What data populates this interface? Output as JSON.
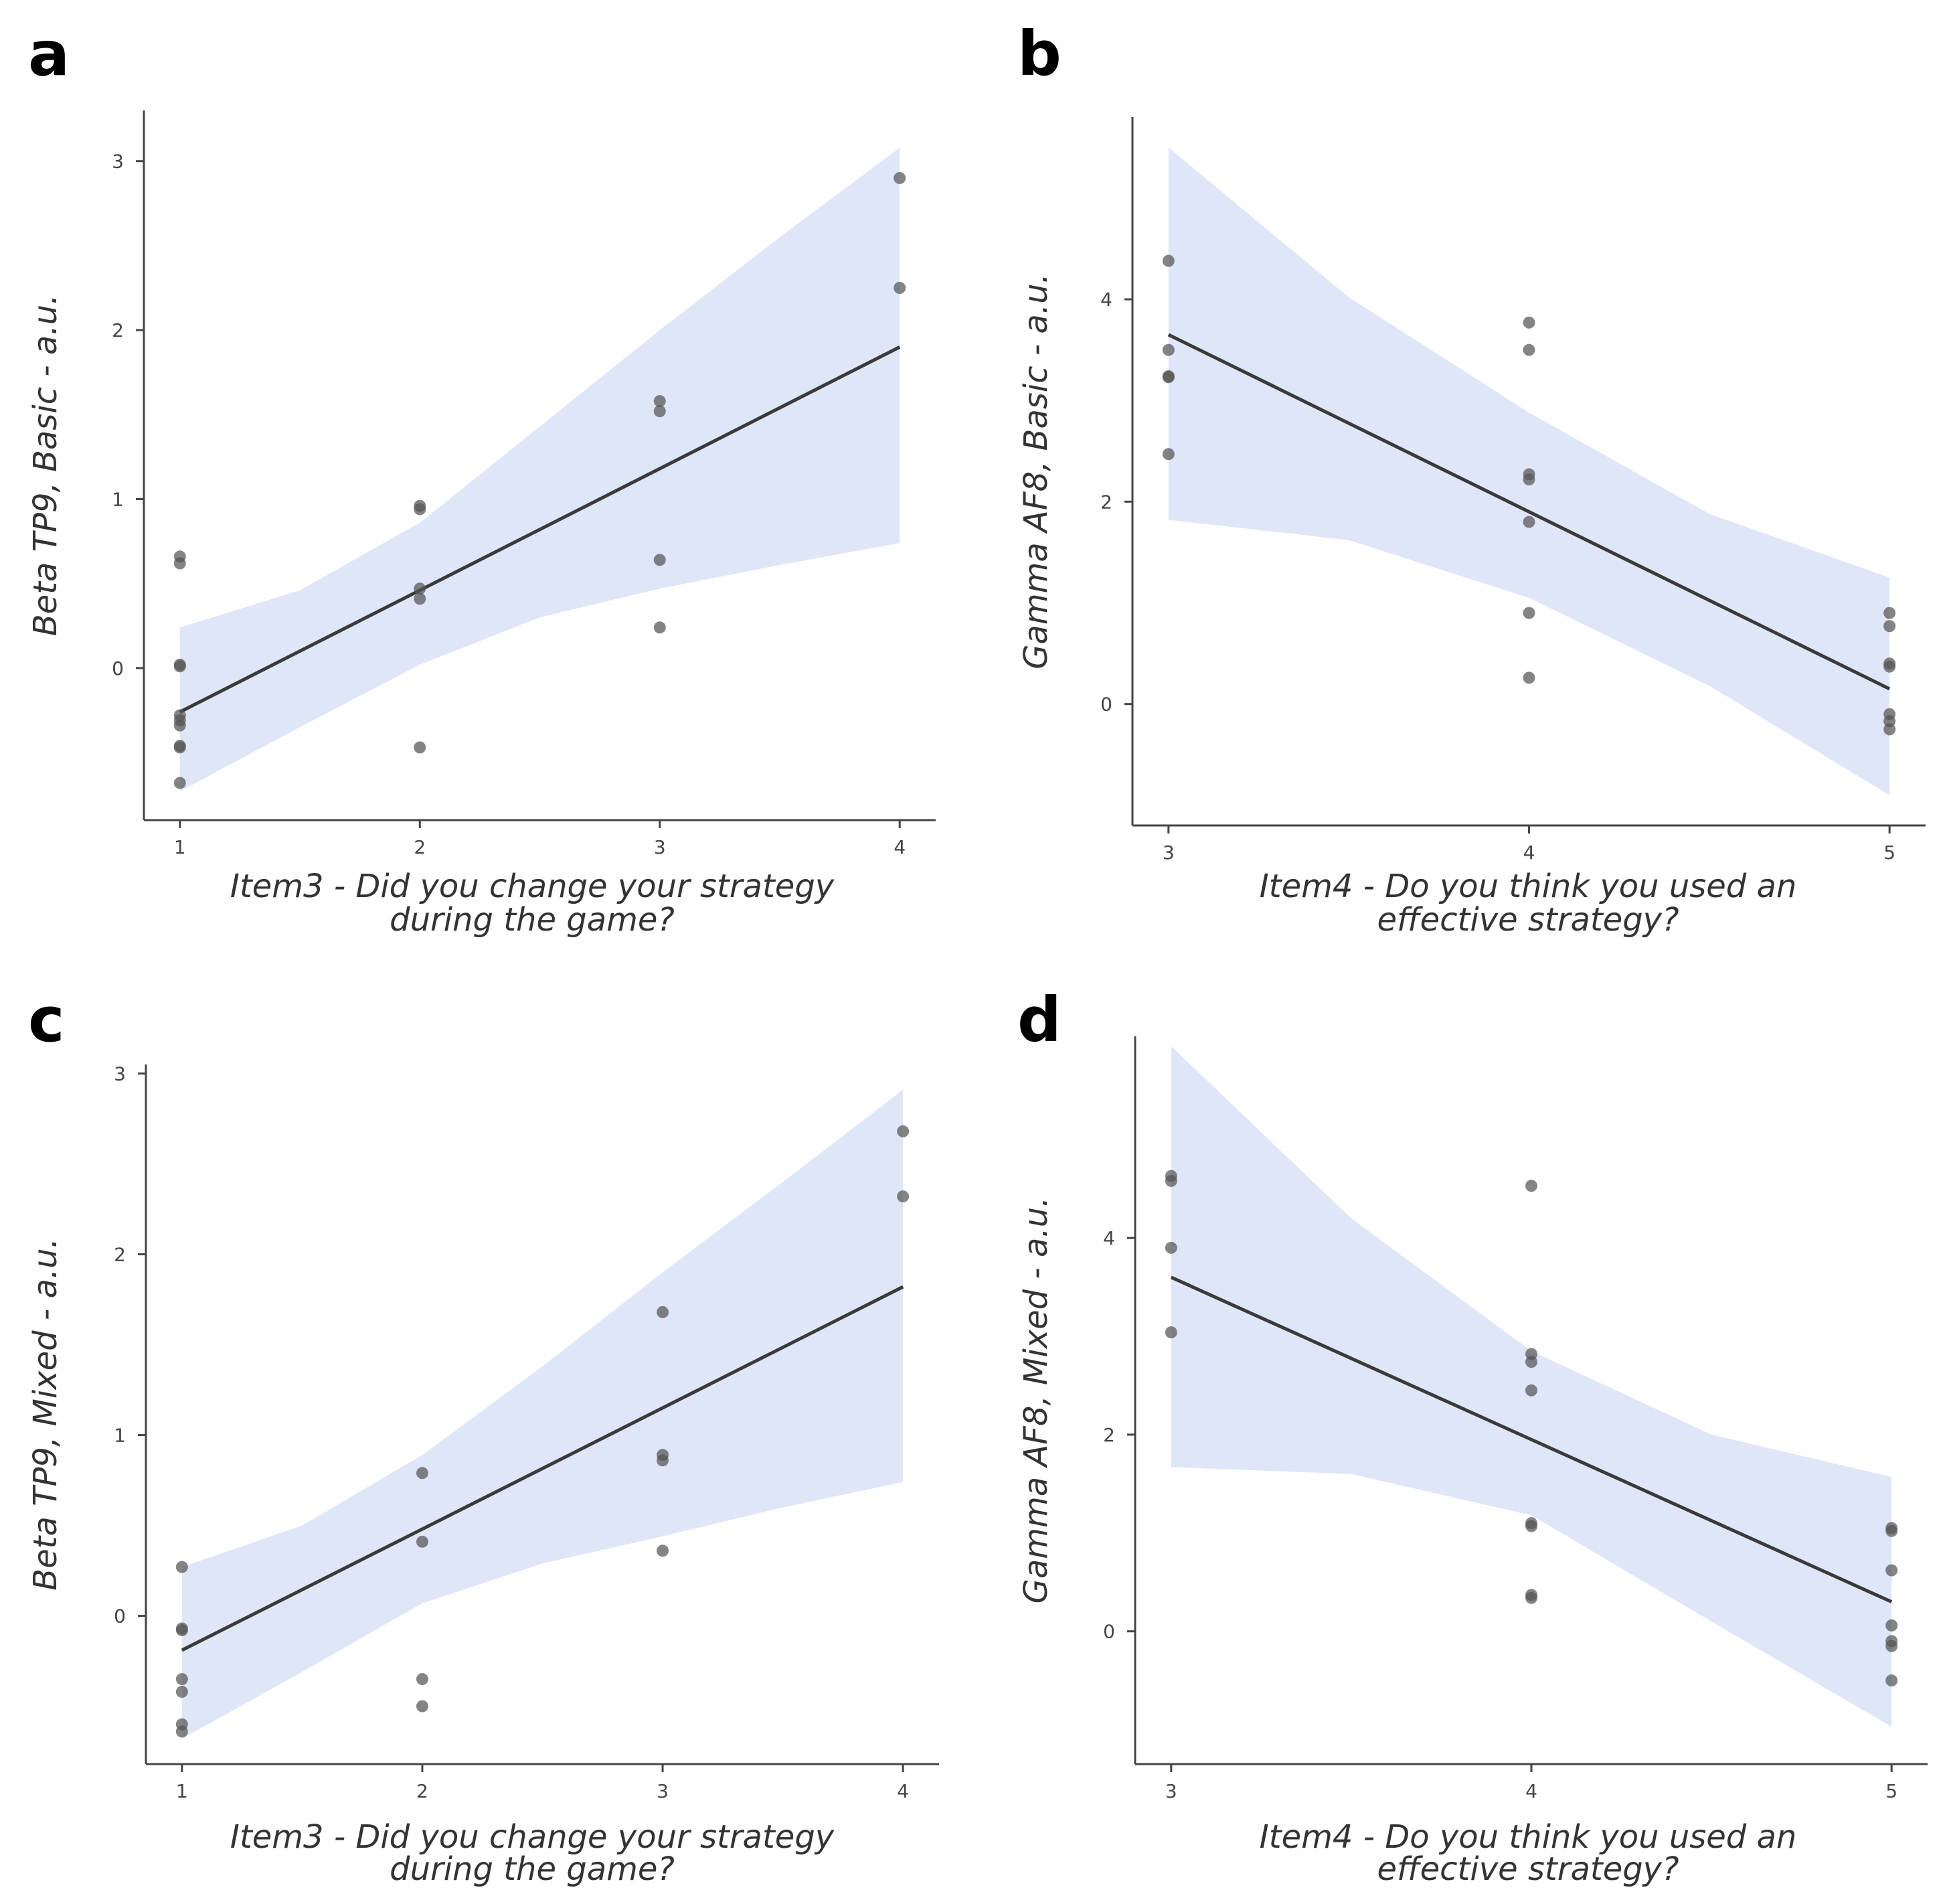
{
  "chart_data": [
    {
      "id": "a",
      "type": "scatter",
      "panel_label": "a",
      "xlabel_lines": [
        "Item3 - Did you change your strategy",
        "during the game?"
      ],
      "ylabel": "Beta TP9, Basic - a.u.",
      "xlim": [
        0.85,
        4.15
      ],
      "ylim": [
        -0.9,
        3.3
      ],
      "xticks": [
        1,
        2,
        3,
        4
      ],
      "yticks": [
        0,
        1,
        2,
        3
      ],
      "fit": {
        "intercept": -0.98,
        "slope": 0.72,
        "x_range": [
          1,
          4
        ]
      },
      "ci_upper": [
        [
          1,
          0.24
        ],
        [
          1.5,
          0.46
        ],
        [
          2,
          0.86
        ],
        [
          2.5,
          1.43
        ],
        [
          3,
          2.0
        ],
        [
          3.5,
          2.55
        ],
        [
          4,
          3.08
        ]
      ],
      "ci_lower": [
        [
          1,
          -0.73
        ],
        [
          1.5,
          -0.35
        ],
        [
          2,
          0.02
        ],
        [
          2.5,
          0.3
        ],
        [
          3,
          0.47
        ],
        [
          3.5,
          0.61
        ],
        [
          4,
          0.74
        ]
      ],
      "points": [
        {
          "x": 1,
          "y": 0.66
        },
        {
          "x": 1,
          "y": 0.62
        },
        {
          "x": 1,
          "y": 0.02
        },
        {
          "x": 1,
          "y": 0.01
        },
        {
          "x": 1,
          "y": -0.28
        },
        {
          "x": 1,
          "y": -0.31
        },
        {
          "x": 1,
          "y": -0.34
        },
        {
          "x": 1,
          "y": -0.46
        },
        {
          "x": 1,
          "y": -0.47
        },
        {
          "x": 1,
          "y": -0.68
        },
        {
          "x": 2,
          "y": 0.96
        },
        {
          "x": 2,
          "y": 0.94
        },
        {
          "x": 2,
          "y": 0.47
        },
        {
          "x": 2,
          "y": 0.41
        },
        {
          "x": 2,
          "y": -0.47
        },
        {
          "x": 3,
          "y": 1.58
        },
        {
          "x": 3,
          "y": 1.52
        },
        {
          "x": 3,
          "y": 0.64
        },
        {
          "x": 3,
          "y": 0.24
        },
        {
          "x": 4,
          "y": 2.9
        },
        {
          "x": 4,
          "y": 2.25
        }
      ]
    },
    {
      "id": "b",
      "type": "scatter",
      "panel_label": "b",
      "xlabel_lines": [
        "Item4 - Do you think you used an",
        "effective strategy?"
      ],
      "ylabel": "Gamma AF8, Basic - a.u.",
      "xlim": [
        2.9,
        5.1
      ],
      "ylim": [
        -1.2,
        5.8
      ],
      "xticks": [
        3,
        4,
        5
      ],
      "yticks": [
        0,
        2,
        4
      ],
      "fit": {
        "intercept": 8.9,
        "slope": -1.75,
        "x_range": [
          3,
          5
        ]
      },
      "ci_upper": [
        [
          3,
          5.5
        ],
        [
          3.5,
          4.02
        ],
        [
          4,
          2.88
        ],
        [
          4.5,
          1.88
        ],
        [
          5,
          1.25
        ]
      ],
      "ci_lower": [
        [
          3,
          1.82
        ],
        [
          3.5,
          1.62
        ],
        [
          4,
          1.05
        ],
        [
          4.5,
          0.18
        ],
        [
          5,
          -0.9
        ]
      ],
      "points": [
        {
          "x": 3,
          "y": 4.38
        },
        {
          "x": 3,
          "y": 3.5
        },
        {
          "x": 3,
          "y": 3.24
        },
        {
          "x": 3,
          "y": 3.23
        },
        {
          "x": 3,
          "y": 2.47
        },
        {
          "x": 4,
          "y": 3.77
        },
        {
          "x": 4,
          "y": 3.5
        },
        {
          "x": 4,
          "y": 2.27
        },
        {
          "x": 4,
          "y": 2.22
        },
        {
          "x": 4,
          "y": 1.8
        },
        {
          "x": 4,
          "y": 0.9
        },
        {
          "x": 4,
          "y": 0.26
        },
        {
          "x": 5,
          "y": 0.9
        },
        {
          "x": 5,
          "y": 0.77
        },
        {
          "x": 5,
          "y": 0.4
        },
        {
          "x": 5,
          "y": 0.37
        },
        {
          "x": 5,
          "y": -0.1
        },
        {
          "x": 5,
          "y": -0.17
        },
        {
          "x": 5,
          "y": -0.25
        }
      ]
    },
    {
      "id": "c",
      "type": "scatter",
      "panel_label": "c",
      "xlabel_lines": [
        "Item3 - Did you change your strategy",
        "during the game?"
      ],
      "ylabel": "Beta TP9, Mixed - a.u.",
      "xlim": [
        0.85,
        4.15
      ],
      "ylim": [
        -0.82,
        3.05
      ],
      "xticks": [
        1,
        2,
        3,
        4
      ],
      "yticks": [
        0,
        1,
        2,
        3
      ],
      "fit": {
        "intercept": -0.86,
        "slope": 0.67,
        "x_range": [
          1,
          4
        ]
      },
      "ci_upper": [
        [
          1,
          0.27
        ],
        [
          1.5,
          0.5
        ],
        [
          2,
          0.89
        ],
        [
          2.5,
          1.38
        ],
        [
          3,
          1.9
        ],
        [
          3.5,
          2.4
        ],
        [
          4,
          2.91
        ]
      ],
      "ci_lower": [
        [
          1,
          -0.68
        ],
        [
          1.5,
          -0.31
        ],
        [
          2,
          0.07
        ],
        [
          2.5,
          0.29
        ],
        [
          3,
          0.44
        ],
        [
          3.5,
          0.6
        ],
        [
          4,
          0.74
        ]
      ],
      "points": [
        {
          "x": 1,
          "y": 0.27
        },
        {
          "x": 1,
          "y": -0.07
        },
        {
          "x": 1,
          "y": -0.08
        },
        {
          "x": 1,
          "y": -0.35
        },
        {
          "x": 1,
          "y": -0.42
        },
        {
          "x": 1,
          "y": -0.6
        },
        {
          "x": 1,
          "y": -0.64
        },
        {
          "x": 2,
          "y": 0.79
        },
        {
          "x": 2,
          "y": 0.41
        },
        {
          "x": 2,
          "y": -0.35
        },
        {
          "x": 2,
          "y": -0.5
        },
        {
          "x": 3,
          "y": 1.68
        },
        {
          "x": 3,
          "y": 0.89
        },
        {
          "x": 3,
          "y": 0.86
        },
        {
          "x": 3,
          "y": 0.36
        },
        {
          "x": 4,
          "y": 2.68
        },
        {
          "x": 4,
          "y": 2.32
        }
      ]
    },
    {
      "id": "d",
      "type": "scatter",
      "panel_label": "d",
      "xlabel_lines": [
        "Item4 - Do you think you used an",
        "effective strategy?"
      ],
      "ylabel": "Gamma AF8, Mixed - a.u.",
      "xlim": [
        2.9,
        5.1
      ],
      "ylim": [
        -1.35,
        6.05
      ],
      "xticks": [
        3,
        4,
        5
      ],
      "yticks": [
        0,
        2,
        4
      ],
      "fit": {
        "intercept": 8.55,
        "slope": -1.65,
        "x_range": [
          3,
          5
        ]
      },
      "ci_upper": [
        [
          3,
          5.95
        ],
        [
          3.5,
          4.2
        ],
        [
          4,
          2.85
        ],
        [
          4.5,
          2.0
        ],
        [
          5,
          1.57
        ]
      ],
      "ci_lower": [
        [
          3,
          1.67
        ],
        [
          3.5,
          1.6
        ],
        [
          4,
          1.18
        ],
        [
          4.5,
          0.1
        ],
        [
          5,
          -0.97
        ]
      ],
      "points": [
        {
          "x": 3,
          "y": 4.63
        },
        {
          "x": 3,
          "y": 4.58
        },
        {
          "x": 3,
          "y": 3.9
        },
        {
          "x": 3,
          "y": 3.04
        },
        {
          "x": 4,
          "y": 4.53
        },
        {
          "x": 4,
          "y": 2.82
        },
        {
          "x": 4,
          "y": 2.74
        },
        {
          "x": 4,
          "y": 2.45
        },
        {
          "x": 4,
          "y": 1.1
        },
        {
          "x": 4,
          "y": 1.07
        },
        {
          "x": 4,
          "y": 0.37
        },
        {
          "x": 4,
          "y": 0.34
        },
        {
          "x": 5,
          "y": 1.05
        },
        {
          "x": 5,
          "y": 1.02
        },
        {
          "x": 5,
          "y": 0.62
        },
        {
          "x": 5,
          "y": 0.06
        },
        {
          "x": 5,
          "y": -0.1
        },
        {
          "x": 5,
          "y": -0.15
        },
        {
          "x": 5,
          "y": -0.5
        }
      ]
    }
  ]
}
